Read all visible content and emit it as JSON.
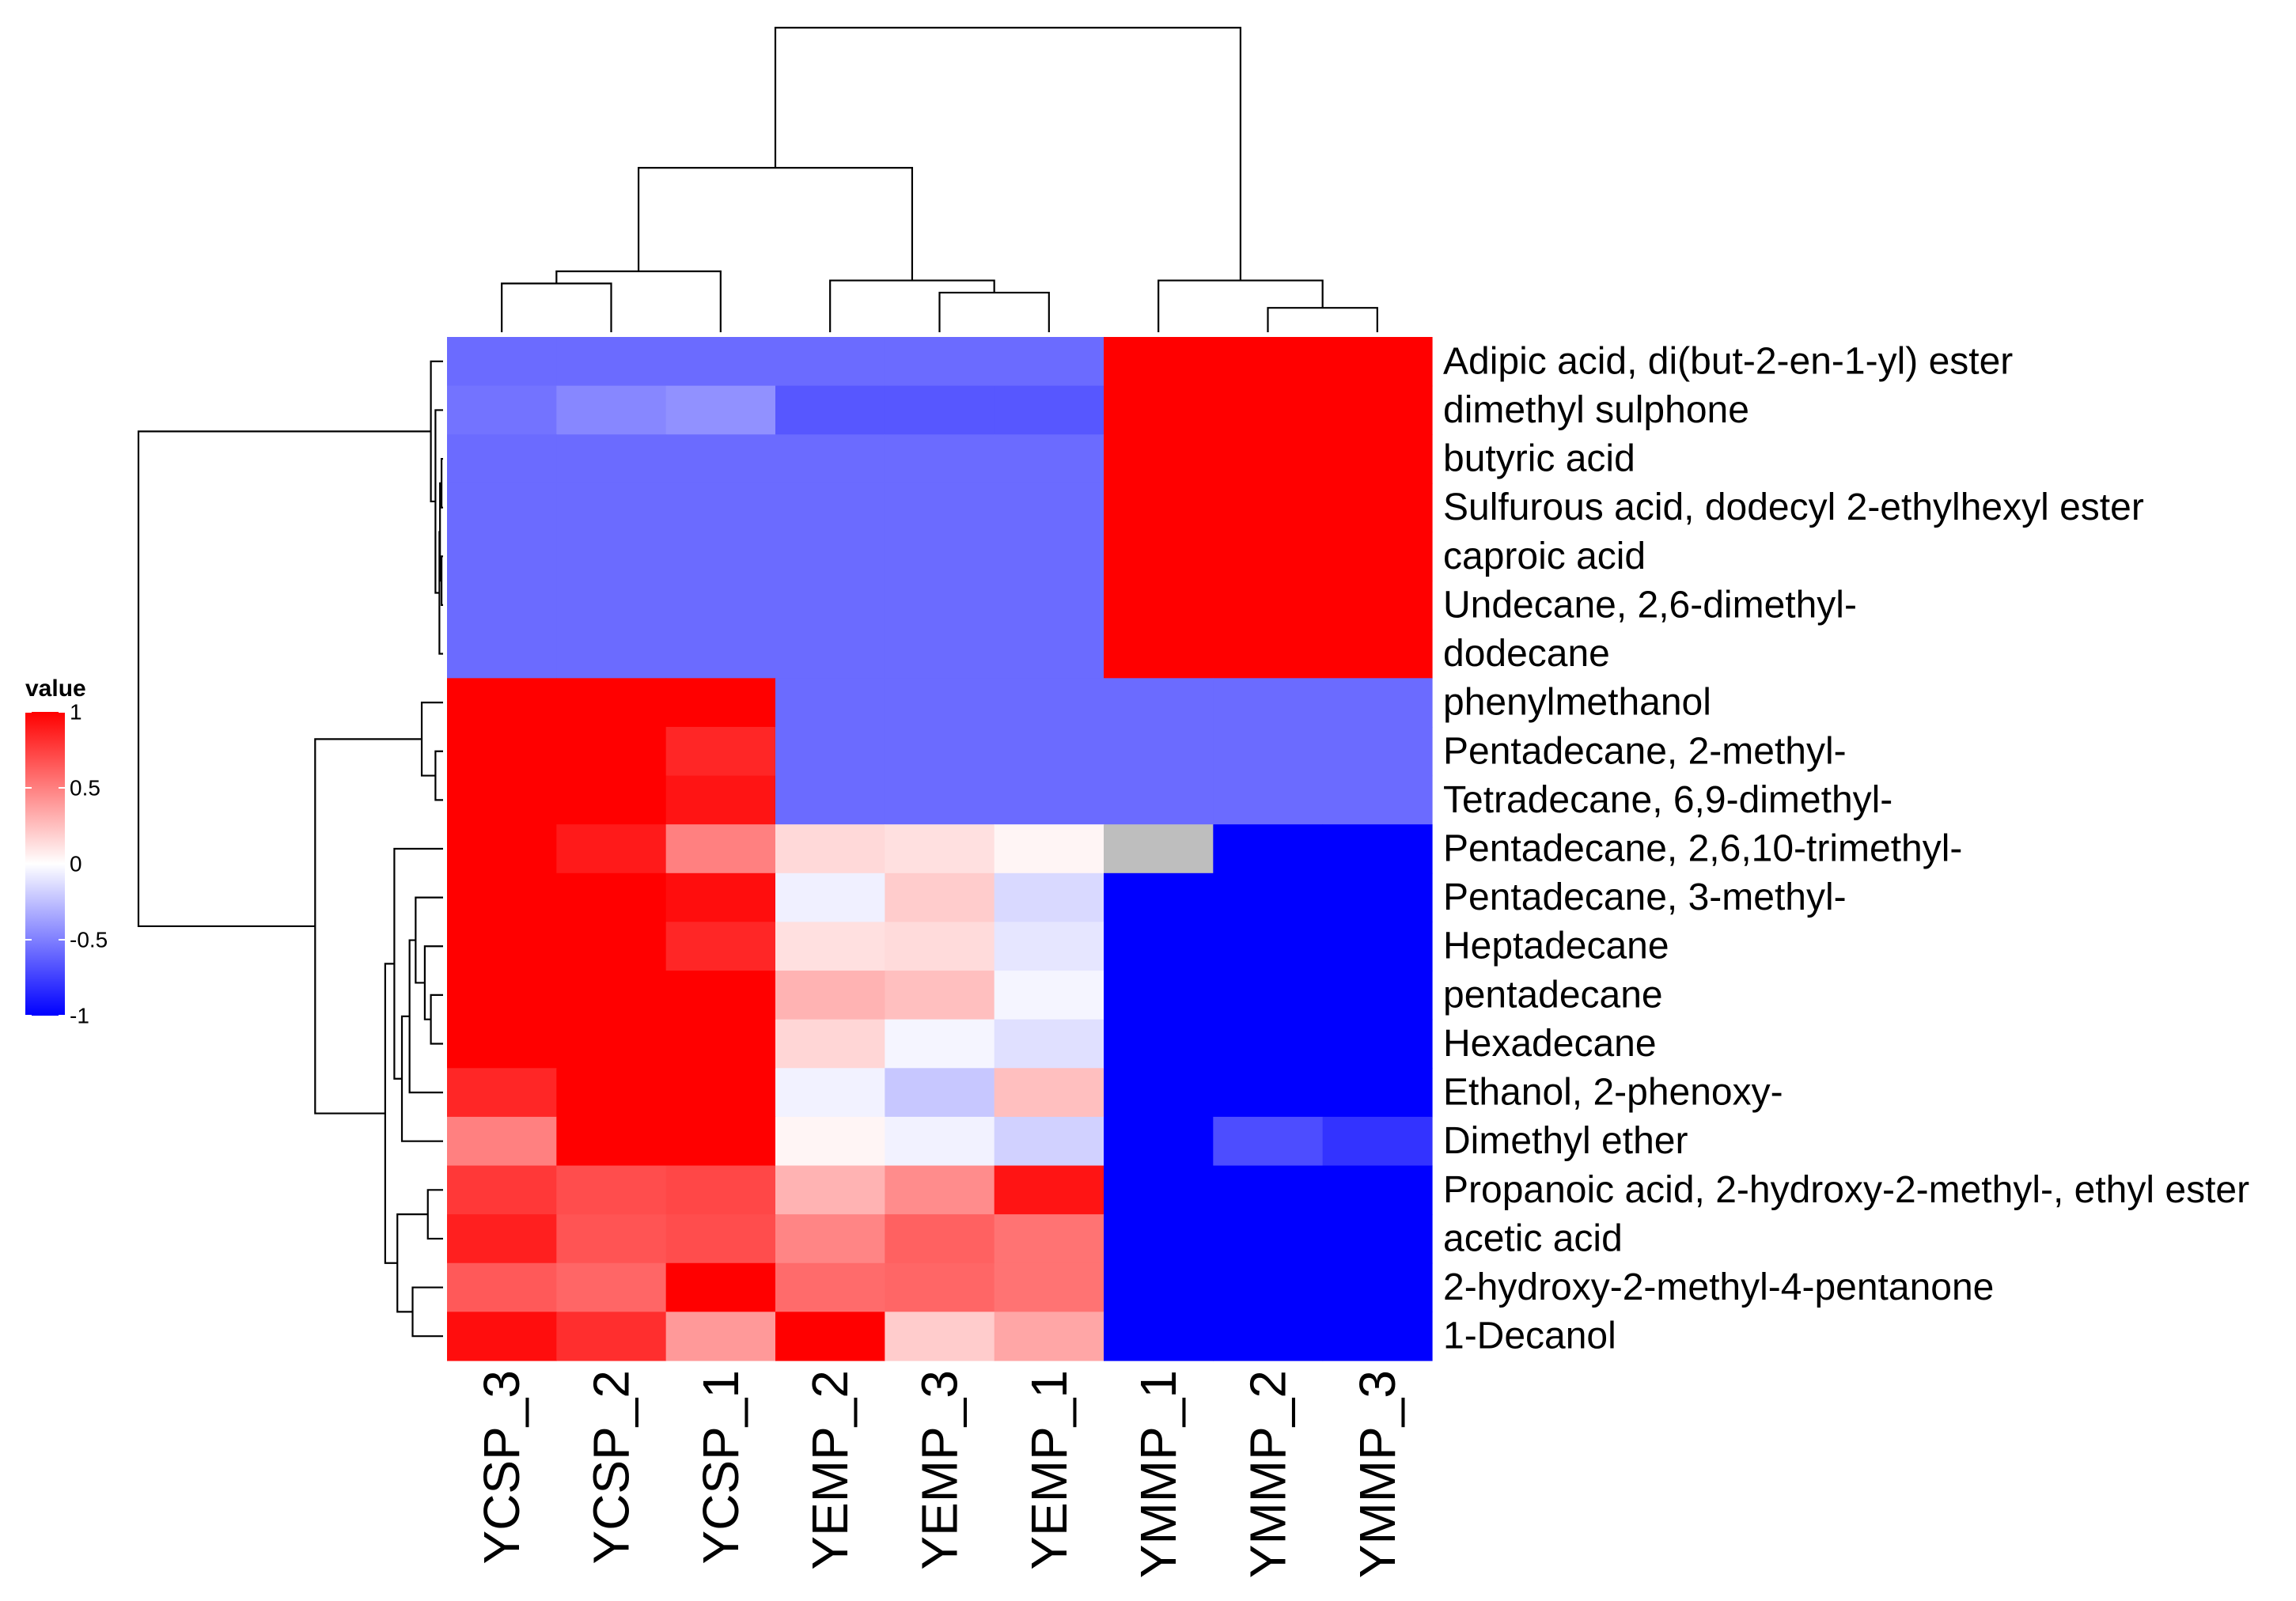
{
  "chart_data": {
    "type": "heatmap",
    "title": "",
    "columns": [
      "YCSP_3",
      "YCSP_2",
      "YCSP_1",
      "YEMP_2",
      "YEMP_3",
      "YEMP_1",
      "YMMP_1",
      "YMMP_2",
      "YMMP_3"
    ],
    "rows": [
      "Adipic acid, di(but-2-en-1-yl) ester",
      "dimethyl sulphone",
      "butyric acid",
      "Sulfurous acid, dodecyl 2-ethylhexyl ester",
      "caproic acid",
      "Undecane, 2,6-dimethyl-",
      "dodecane",
      "phenylmethanol",
      "Pentadecane, 2-methyl-",
      "Tetradecane, 6,9-dimethyl-",
      "Pentadecane, 2,6,10-trimethyl-",
      "Pentadecane, 3-methyl-",
      "Heptadecane",
      "pentadecane",
      "Hexadecane",
      "Ethanol, 2-phenoxy-",
      "Dimethyl ether",
      "Propanoic acid, 2-hydroxy-2-methyl-, ethyl ester",
      "acetic acid",
      "2-hydroxy-2-methyl-4-pentanone",
      "1-Decanol"
    ],
    "values": [
      [
        -0.58,
        -0.58,
        -0.58,
        -0.58,
        -0.58,
        -0.58,
        1,
        1,
        1
      ],
      [
        -0.55,
        -0.47,
        -0.43,
        -0.66,
        -0.66,
        -0.66,
        1,
        1,
        1
      ],
      [
        -0.58,
        -0.58,
        -0.58,
        -0.58,
        -0.58,
        -0.58,
        1,
        1,
        1
      ],
      [
        -0.58,
        -0.58,
        -0.58,
        -0.58,
        -0.58,
        -0.58,
        1,
        1,
        1
      ],
      [
        -0.58,
        -0.58,
        -0.58,
        -0.58,
        -0.58,
        -0.58,
        1,
        1,
        1
      ],
      [
        -0.58,
        -0.58,
        -0.58,
        -0.58,
        -0.58,
        -0.58,
        1,
        1,
        1
      ],
      [
        -0.58,
        -0.58,
        -0.58,
        -0.58,
        -0.58,
        -0.58,
        1,
        1,
        1
      ],
      [
        1,
        1,
        1,
        -0.58,
        -0.58,
        -0.58,
        -0.58,
        -0.58,
        -0.58
      ],
      [
        1,
        1,
        0.85,
        -0.58,
        -0.58,
        -0.58,
        -0.58,
        -0.58,
        -0.58
      ],
      [
        1,
        1,
        0.92,
        -0.58,
        -0.58,
        -0.58,
        -0.58,
        -0.58,
        -0.58
      ],
      [
        1,
        0.9,
        0.5,
        0.15,
        0.12,
        0.04,
        null,
        -1,
        -1
      ],
      [
        1,
        1,
        0.95,
        -0.06,
        0.2,
        -0.15,
        -1,
        -1,
        -1
      ],
      [
        1,
        1,
        0.85,
        0.12,
        0.14,
        -0.1,
        -1,
        -1,
        -1
      ],
      [
        1,
        1,
        1,
        0.3,
        0.25,
        -0.04,
        -1,
        -1,
        -1
      ],
      [
        1,
        1,
        1,
        0.16,
        -0.04,
        -0.12,
        -1,
        -1,
        -1
      ],
      [
        0.85,
        1,
        1,
        -0.05,
        -0.22,
        0.25,
        -1,
        -1,
        -1
      ],
      [
        0.5,
        1,
        1,
        0.04,
        -0.05,
        -0.18,
        -1,
        -0.7,
        -0.8
      ],
      [
        0.78,
        0.7,
        0.72,
        0.3,
        0.45,
        0.92,
        -1,
        -1,
        -1
      ],
      [
        0.88,
        0.67,
        0.7,
        0.48,
        0.62,
        0.55,
        -1,
        -1,
        -1
      ],
      [
        0.65,
        0.6,
        1,
        0.58,
        0.6,
        0.55,
        -1,
        -1,
        -1
      ],
      [
        0.95,
        0.82,
        0.4,
        1,
        0.2,
        0.35,
        -1,
        -1,
        -1
      ]
    ],
    "na_color": "#bebebe",
    "color_scale": {
      "min": -1,
      "mid": 0,
      "max": 1,
      "low_color": "#0000ff",
      "mid_color": "#ffffff",
      "high_color": "#ff0000"
    },
    "legend": {
      "title": "value",
      "ticks": [
        1,
        0.5,
        0,
        -0.5,
        -1
      ],
      "tick_labels": [
        "1",
        "0.5",
        "0",
        "-0.5",
        "-1"
      ],
      "placement": "left"
    },
    "column_dendrogram": [
      [
        "YCSP_3",
        "YCSP_2",
        0.16
      ],
      [
        "YCSP_3|YCSP_2",
        "YCSP_1",
        0.2
      ],
      [
        "YEMP_3",
        "YEMP_1",
        0.13
      ],
      [
        "YEMP_2",
        "YEMP_3|YEMP_1",
        0.17
      ],
      [
        "YCSP_3|YCSP_2|YCSP_1",
        "YEMP_2|YEMP_3|YEMP_1",
        0.54
      ],
      [
        "YMMP_2",
        "YMMP_3",
        0.08
      ],
      [
        "YMMP_1",
        "YMMP_2|YMMP_3",
        0.17
      ],
      [
        "YCSP_3|YCSP_2|YCSP_1|YEMP_2|YEMP_3|YEMP_1",
        "YMMP_1|YMMP_2|YMMP_3",
        1.0
      ]
    ],
    "row_dendrogram": [
      [
        "caproic acid",
        "Undecane, 2,6-dimethyl-",
        0.005
      ],
      [
        "butyric acid",
        "Sulfurous acid, dodecyl 2-ethylhexyl ester",
        0.005
      ],
      [
        "butyric acid|Sulfurous acid, dodecyl 2-ethylhexyl ester",
        "caproic acid|Undecane, 2,6-dimethyl-",
        0.01
      ],
      [
        "butyric acid|Sulfurous acid, dodecyl 2-ethylhexyl ester|caproic acid|Undecane, 2,6-dimethyl-",
        "dodecane",
        0.012
      ],
      [
        "butyric acid|Sulfurous acid, dodecyl 2-ethylhexyl ester|caproic acid|Undecane, 2,6-dimethyl-|dodecane",
        "dimethyl sulphone",
        0.025
      ],
      [
        "Adipic acid, di(but-2-en-1-yl) ester",
        "butyric acid|Sulfurous acid, dodecyl 2-ethylhexyl ester|caproic acid|Undecane, 2,6-dimethyl-|dodecane|dimethyl sulphone",
        0.04
      ],
      [
        "Pentadecane, 2-methyl-",
        "Tetradecane, 6,9-dimethyl-",
        0.025
      ],
      [
        "phenylmethanol",
        "Pentadecane, 2-methyl-|Tetradecane, 6,9-dimethyl-",
        0.07
      ],
      [
        "pentadecane",
        "Hexadecane",
        0.04
      ],
      [
        "Heptadecane",
        "pentadecane|Hexadecane",
        0.06
      ],
      [
        "Pentadecane, 3-methyl-",
        "Heptadecane|pentadecane|Hexadecane",
        0.09
      ],
      [
        "Ethanol, 2-phenoxy-",
        "Pentadecane, 3-methyl-|Heptadecane|pentadecane|Hexadecane",
        0.11
      ],
      [
        "Ethanol, 2-phenoxy-|Pentadecane, 3-methyl-|Heptadecane|pentadecane|Hexadecane",
        "Dimethyl ether",
        0.135
      ],
      [
        "Pentadecane, 2,6,10-trimethyl-",
        "Ethanol, 2-phenoxy-|Pentadecane, 3-methyl-|Heptadecane|pentadecane|Hexadecane|Dimethyl ether",
        0.16
      ],
      [
        "Propanoic acid, 2-hydroxy-2-methyl-, ethyl ester",
        "acetic acid",
        0.05
      ],
      [
        "2-hydroxy-2-methyl-4-pentanone",
        "1-Decanol",
        0.1
      ],
      [
        "Propanoic acid, 2-hydroxy-2-methyl-, ethyl ester|acetic acid",
        "2-hydroxy-2-methyl-4-pentanone|1-Decanol",
        0.15
      ],
      [
        "Pentadecane, 2,6,10-trimethyl-|Ethanol, 2-phenoxy-|Pentadecane, 3-methyl-|Heptadecane|pentadecane|Hexadecane|Dimethyl ether",
        "Propanoic acid, 2-hydroxy-2-methyl-, ethyl ester|acetic acid|2-hydroxy-2-methyl-4-pentanone|1-Decanol",
        0.19
      ],
      [
        "phenylmethanol|Pentadecane, 2-methyl-|Tetradecane, 6,9-dimethyl-",
        "Pentadecane, 2,6,10-trimethyl-|Ethanol, 2-phenoxy-|Pentadecane, 3-methyl-|Heptadecane|pentadecane|Hexadecane|Dimethyl ether|Propanoic acid, 2-hydroxy-2-methyl-, ethyl ester|acetic acid|2-hydroxy-2-methyl-4-pentanone|1-Decanol",
        0.42
      ],
      [
        "Adipic acid, di(but-2-en-1-yl) ester|butyric acid|Sulfurous acid, dodecyl 2-ethylhexyl ester|caproic acid|Undecane, 2,6-dimethyl-|dodecane|dimethyl sulphone",
        "phenylmethanol|Pentadecane, 2-methyl-|Tetradecane, 6,9-dimethyl-|Pentadecane, 2,6,10-trimethyl-|Ethanol, 2-phenoxy-|Pentadecane, 3-methyl-|Heptadecane|pentadecane|Hexadecane|Dimethyl ether|Propanoic acid, 2-hydroxy-2-methyl-, ethyl ester|acetic acid|2-hydroxy-2-methyl-4-pentanone|1-Decanol",
        1.0
      ]
    ]
  }
}
